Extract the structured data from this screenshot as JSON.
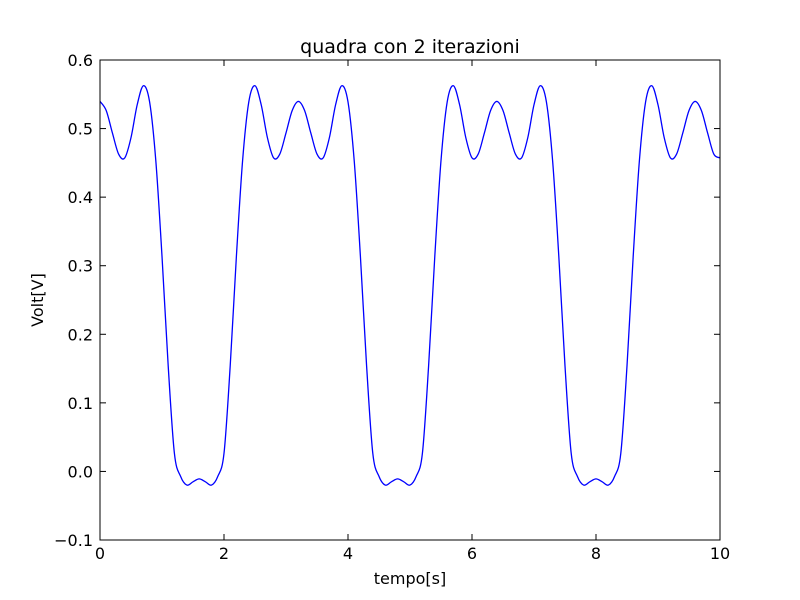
{
  "chart_data": {
    "type": "line",
    "title": "quadra con 2 iterazioni",
    "xlabel": "tempo[s]",
    "ylabel": "Volt[V]",
    "xlim": [
      0,
      10
    ],
    "ylim": [
      -0.1,
      0.6
    ],
    "x_ticks": [
      "0",
      "2",
      "4",
      "6",
      "8",
      "10"
    ],
    "y_ticks": [
      "−0.1",
      "0.0",
      "0.1",
      "0.2",
      "0.3",
      "0.4",
      "0.5",
      "0.6"
    ],
    "grid": false,
    "legend": "none",
    "line_color": "#0000ff",
    "series": [
      {
        "x": [
          0,
          0.1,
          0.2,
          0.3,
          0.4,
          0.5,
          0.6,
          0.7,
          0.8,
          0.9,
          1.0,
          1.1,
          1.2,
          1.3,
          1.4,
          1.5,
          1.6,
          1.7,
          1.8,
          1.9,
          2.0,
          2.1,
          2.2,
          2.3,
          2.4,
          2.5,
          2.6,
          2.7,
          2.8,
          2.9,
          3.0,
          3.1,
          3.2,
          3.3,
          3.4,
          3.5,
          3.6,
          3.7,
          3.8,
          3.9,
          4.0,
          4.1,
          4.2,
          4.3,
          4.4,
          4.5,
          4.6,
          4.7,
          4.8,
          4.9,
          5.0,
          5.1,
          5.2,
          5.3,
          5.4,
          5.5,
          5.6,
          5.7,
          5.8,
          5.9,
          6.0,
          6.1,
          6.2,
          6.3,
          6.4,
          6.5,
          6.6,
          6.7,
          6.8,
          6.9,
          7.0,
          7.1,
          7.2,
          7.3,
          7.4,
          7.5,
          7.6,
          7.7,
          7.8,
          7.9,
          8.0,
          8.1,
          8.2,
          8.3,
          8.4,
          8.5,
          8.6,
          8.7,
          8.8,
          8.9,
          9.0,
          9.1,
          9.2,
          9.3,
          9.4,
          9.5,
          9.6,
          9.7,
          9.8,
          9.9,
          10.0
        ],
        "y": [
          0.5396,
          0.5263,
          0.4936,
          0.4628,
          0.4573,
          0.4868,
          0.5347,
          0.5625,
          0.5389,
          0.4533,
          0.3138,
          0.1538,
          0.0264,
          -0.0072,
          -0.0199,
          -0.0151,
          -0.0109,
          -0.0151,
          -0.0199,
          -0.0072,
          0.0264,
          0.1538,
          0.3138,
          0.4533,
          0.5389,
          0.5625,
          0.5347,
          0.4868,
          0.4573,
          0.4628,
          0.4936,
          0.5263,
          0.5396,
          0.5263,
          0.4936,
          0.4628,
          0.4573,
          0.4868,
          0.5347,
          0.5625,
          0.5389,
          0.4533,
          0.3138,
          0.1538,
          0.0264,
          -0.0072,
          -0.0199,
          -0.0151,
          -0.0109,
          -0.0151,
          -0.0199,
          -0.0072,
          0.0264,
          0.1538,
          0.3138,
          0.4533,
          0.5389,
          0.5625,
          0.5347,
          0.4868,
          0.4573,
          0.4628,
          0.4936,
          0.5263,
          0.5396,
          0.5263,
          0.4936,
          0.4628,
          0.4573,
          0.4868,
          0.5347,
          0.5625,
          0.5389,
          0.4533,
          0.3138,
          0.1538,
          0.0264,
          -0.0072,
          -0.0199,
          -0.0151,
          -0.0109,
          -0.0151,
          -0.0199,
          -0.0072,
          0.0264,
          0.1538,
          0.3138,
          0.4533,
          0.5389,
          0.5625,
          0.5347,
          0.4868,
          0.4573,
          0.4628,
          0.4936,
          0.5263,
          0.5396,
          0.5263,
          0.4936,
          0.4628,
          0.4573
        ]
      }
    ]
  }
}
